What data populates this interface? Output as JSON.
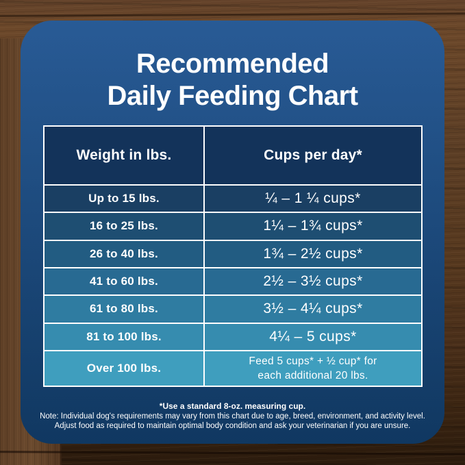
{
  "title": {
    "line1": "Recommended",
    "line2": "Daily Feeding Chart"
  },
  "colors": {
    "card_top": "#1d5290",
    "card_bottom": "#123e6c",
    "table_border": "#ffffff",
    "header_bg": "#13335a",
    "row_bgs": [
      "#1a3f63",
      "#1e4e72",
      "#225c82",
      "#286a92",
      "#2f7ca1",
      "#368caf",
      "#3f9ebe"
    ],
    "text": "#ffffff",
    "wood_light": "#6b4a2e",
    "wood_dark": "#2b1b0d"
  },
  "chart_data": {
    "type": "table",
    "title": "Recommended Daily Feeding Chart",
    "columns": [
      "Weight in lbs.",
      "Cups per day*"
    ],
    "rows": [
      {
        "weight": "Up to 15 lbs.",
        "cups": "¼ – 1 ¼ cups*"
      },
      {
        "weight": "16 to 25 lbs.",
        "cups": "1¼ – 1¾ cups*"
      },
      {
        "weight": "26 to 40 lbs.",
        "cups": "1¾ – 2½ cups*"
      },
      {
        "weight": "41 to 60 lbs.",
        "cups": "2½ – 3½ cups*"
      },
      {
        "weight": "61 to 80 lbs.",
        "cups": "3½ – 4¼ cups*"
      },
      {
        "weight": "81 to 100 lbs.",
        "cups": "4¼ – 5 cups*"
      },
      {
        "weight": "Over 100 lbs.",
        "cups": "Feed 5 cups* + ½ cup* for each additional 20 lbs.",
        "cups_line1": "Feed 5 cups* + ½ cup* for",
        "cups_line2": "each additional 20 lbs."
      }
    ],
    "footnotes": [
      "*Use a standard 8-oz. measuring cup.",
      "Note: Individual dog's requirements may vary from this chart due to age, breed, environment, and activity level.",
      "Adjust food as required to maintain optimal body condition and ask your veterinarian if you are unsure."
    ]
  }
}
